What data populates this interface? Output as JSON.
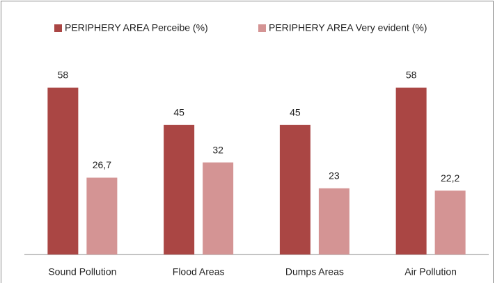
{
  "chart_data": {
    "type": "bar",
    "categories": [
      "Sound Pollution",
      "Flood Areas",
      "Dumps Areas",
      "Air Pollution"
    ],
    "series": [
      {
        "name": "PERIPHERY AREA Perceibe (%)",
        "color": "#aa4644",
        "values": [
          58,
          45,
          45,
          58
        ]
      },
      {
        "name": "PERIPHERY AREA Very evident (%)",
        "color": "#d49494",
        "values": [
          26.7,
          32,
          23,
          22.2
        ],
        "value_labels": [
          "26,7",
          "32",
          "23",
          "22,2"
        ]
      }
    ],
    "legend": "top"
  }
}
